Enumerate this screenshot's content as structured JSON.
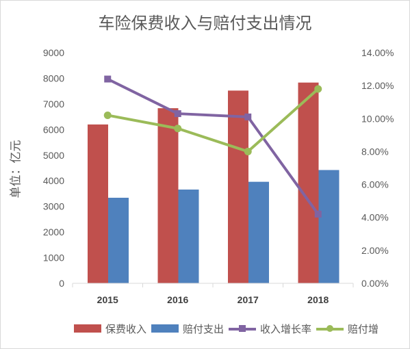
{
  "title": "车险保费收入与赔付支出情况",
  "chart_data": {
    "type": "bar",
    "title": "车险保费收入与赔付支出情况",
    "categories": [
      "2015",
      "2016",
      "2017",
      "2018"
    ],
    "ylabel": "单位：亿元",
    "ylim": [
      0,
      9000
    ],
    "yticks": [
      "0",
      "1000",
      "2000",
      "3000",
      "4000",
      "5000",
      "6000",
      "7000",
      "8000",
      "9000"
    ],
    "y2lim": [
      0,
      0.14
    ],
    "y2ticks": [
      "0.00%",
      "2.00%",
      "4.00%",
      "6.00%",
      "8.00%",
      "10.00%",
      "12.00%",
      "14.00%"
    ],
    "grid": false,
    "legend_position": "bottom",
    "series": [
      {
        "name": "保费收入",
        "type": "bar",
        "axis": "left",
        "color": "#C0504D",
        "values": [
          6199,
          6834,
          7521,
          7834
        ]
      },
      {
        "name": "赔付支出",
        "type": "bar",
        "axis": "left",
        "color": "#4F81BD",
        "values": [
          3339,
          3659,
          3962,
          4421
        ]
      },
      {
        "name": "收入增长率",
        "type": "line",
        "axis": "right",
        "color": "#8064A2",
        "marker": "square",
        "values": [
          0.124,
          0.103,
          0.101,
          0.042
        ]
      },
      {
        "name": "赔付增",
        "type": "line",
        "axis": "right",
        "color": "#9BBB59",
        "marker": "circle",
        "values": [
          0.102,
          0.094,
          0.08,
          0.118
        ]
      }
    ]
  }
}
